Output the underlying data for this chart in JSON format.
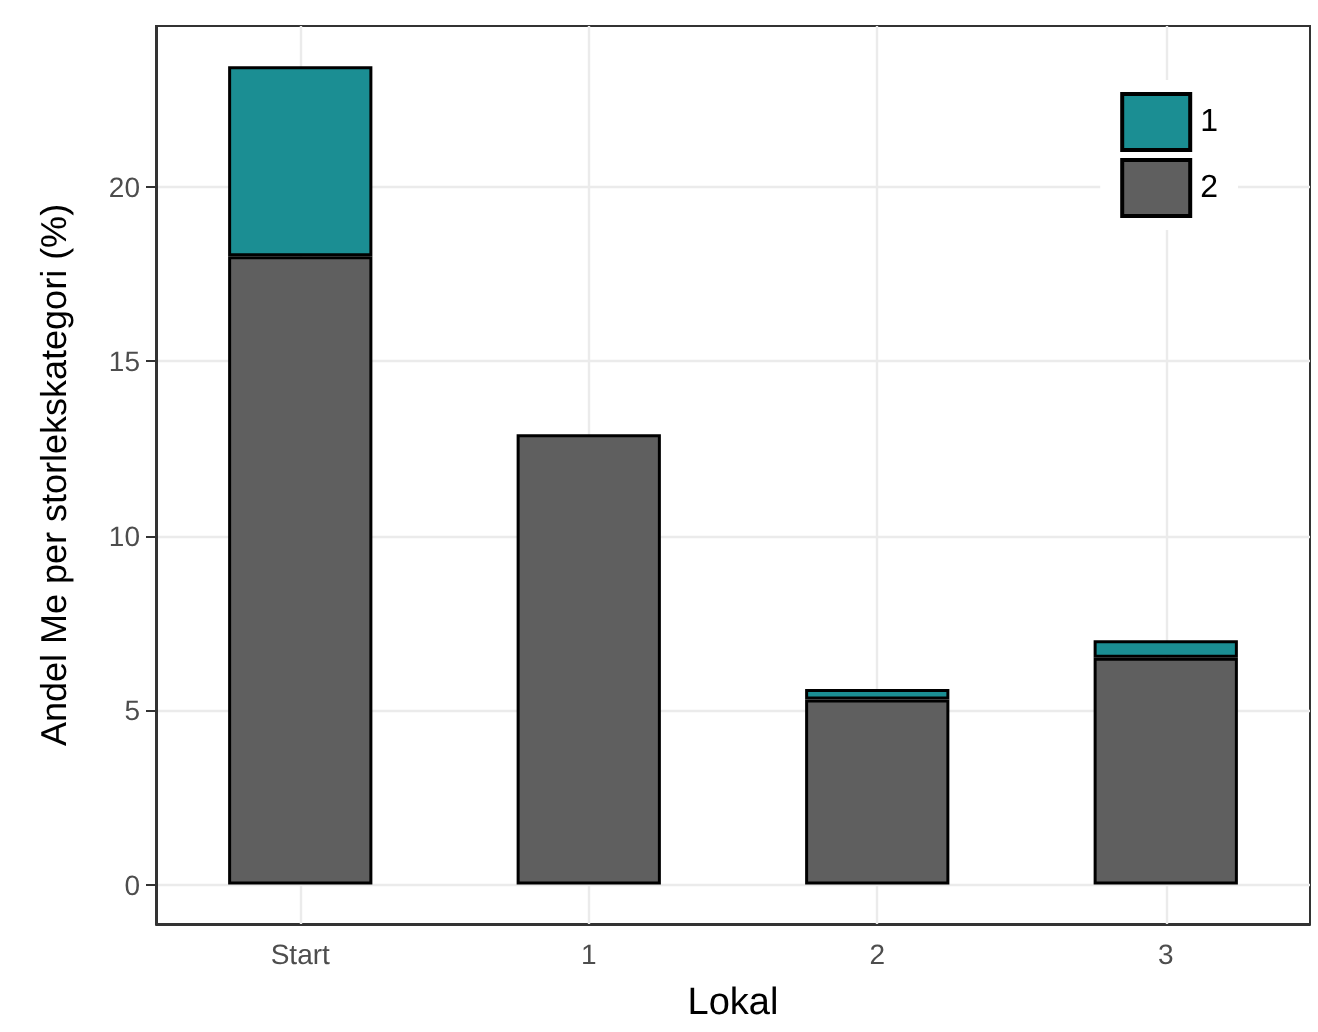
{
  "chart_data": {
    "type": "bar",
    "xlabel": "Lokal",
    "ylabel": "Andel Me per storlekskategori (%)",
    "categories": [
      "Start",
      "1",
      "2",
      "3"
    ],
    "series": [
      {
        "name": "2",
        "color": "#5f5f5f",
        "values": [
          18.0,
          12.9,
          5.3,
          6.5
        ]
      },
      {
        "name": "1",
        "color": "#1b8e93",
        "values": [
          5.45,
          null,
          0.3,
          0.5
        ]
      }
    ],
    "stacked": true,
    "ylim": [
      -1.13,
      24.6
    ],
    "yticks": [
      0,
      5,
      10,
      15,
      20
    ],
    "grid": true,
    "legend": "top right"
  }
}
